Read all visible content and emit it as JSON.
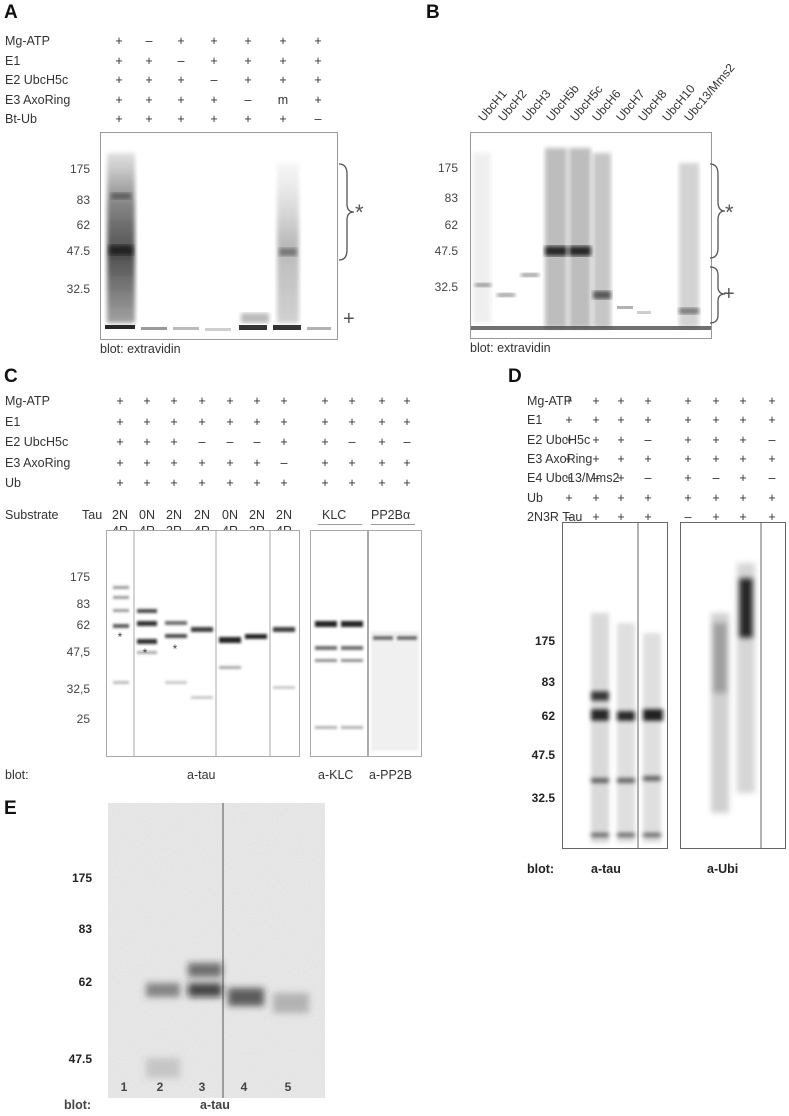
{
  "panels": {
    "A": {
      "letter": "A",
      "rows": [
        {
          "label": "Mg-ATP",
          "values": [
            "+",
            "–",
            "+",
            "+",
            "+",
            "+",
            "+"
          ]
        },
        {
          "label": "E1",
          "values": [
            "+",
            "+",
            "–",
            "+",
            "+",
            "+",
            "+"
          ]
        },
        {
          "label": "E2 UbcH5c",
          "values": [
            "+",
            "+",
            "+",
            "–",
            "+",
            "+",
            "+"
          ]
        },
        {
          "label": "E3 AxoRing",
          "values": [
            "+",
            "+",
            "+",
            "+",
            "–",
            "m",
            "+"
          ]
        },
        {
          "label": "Bt-Ub",
          "values": [
            "+",
            "+",
            "+",
            "+",
            "+",
            "+",
            "–"
          ]
        }
      ],
      "mw": [
        "175",
        "83",
        "62",
        "47.5",
        "32.5"
      ],
      "blot": "blot: extravidin",
      "star": "*",
      "plus": "+"
    },
    "B": {
      "letter": "B",
      "lanes": [
        "UbcH1",
        "UbcH2",
        "UbcH3",
        "UbcH5b",
        "UbcH5c",
        "UbcH6",
        "UbcH7",
        "UbcH8",
        "UbcH10",
        "Ubc13/Mms2"
      ],
      "mw": [
        "175",
        "83",
        "62",
        "47.5",
        "32.5"
      ],
      "blot": "blot: extravidin",
      "star": "*",
      "plus": "+"
    },
    "C": {
      "letter": "C",
      "rows": [
        {
          "label": "Mg-ATP",
          "values": [
            "+",
            "+",
            "+",
            "+",
            "+",
            "+",
            "+",
            "+",
            "+",
            "+",
            "+"
          ]
        },
        {
          "label": "E1",
          "values": [
            "+",
            "+",
            "+",
            "+",
            "+",
            "+",
            "+",
            "+",
            "+",
            "+",
            "+"
          ]
        },
        {
          "label": "E2 UbcH5c",
          "values": [
            "+",
            "+",
            "+",
            "–",
            "–",
            "–",
            "+",
            "+",
            "–",
            "+",
            "–"
          ]
        },
        {
          "label": "E3 AxoRing",
          "values": [
            "+",
            "+",
            "+",
            "+",
            "+",
            "+",
            "–",
            "+",
            "+",
            "+",
            "+"
          ]
        },
        {
          "label": "Ub",
          "values": [
            "+",
            "+",
            "+",
            "+",
            "+",
            "+",
            "+",
            "+",
            "+",
            "+",
            "+"
          ]
        }
      ],
      "substrate_label": "Substrate",
      "tau_label": "Tau",
      "substrates_top": [
        "2N",
        "0N",
        "2N",
        "2N",
        "0N",
        "2N",
        "2N"
      ],
      "substrates_bottom": [
        "4R",
        "4R",
        "3R",
        "4R",
        "4R",
        "3R",
        "4R"
      ],
      "klc_label": "KLC",
      "pp2b_label": "PP2Bα",
      "mw": [
        "175",
        "83",
        "62",
        "47,5",
        "32,5",
        "25"
      ],
      "blot": "blot:",
      "blot_tau": "a-tau",
      "blot_klc": "a-KLC",
      "blot_pp2b": "a-PP2B",
      "star": "*"
    },
    "D": {
      "letter": "D",
      "rows": [
        {
          "label": "Mg-ATP",
          "values": [
            "+",
            "+",
            "+",
            "+",
            "+",
            "+",
            "+",
            "+"
          ]
        },
        {
          "label": "E1",
          "values": [
            "+",
            "+",
            "+",
            "+",
            "+",
            "+",
            "+",
            "+"
          ]
        },
        {
          "label": "E2 UbcH5c",
          "values": [
            "+",
            "+",
            "+",
            "–",
            "+",
            "+",
            "+",
            "–"
          ]
        },
        {
          "label": "E3 AxoRing",
          "values": [
            "+",
            "+",
            "+",
            "+",
            "+",
            "+",
            "+",
            "+"
          ]
        },
        {
          "label": "E4 Ubc13/Mms2",
          "values": [
            "+",
            "–",
            "+",
            "–",
            "+",
            "–",
            "+",
            "–"
          ]
        },
        {
          "label": "Ub",
          "values": [
            "+",
            "+",
            "+",
            "+",
            "+",
            "+",
            "+",
            "+"
          ]
        },
        {
          "label": "2N3R Tau",
          "values": [
            "–",
            "+",
            "+",
            "+",
            "–",
            "+",
            "+",
            "+"
          ]
        }
      ],
      "mw": [
        "175",
        "83",
        "62",
        "47.5",
        "32.5"
      ],
      "blot": "blot:",
      "blot_tau": "a-tau",
      "blot_ubi": "a-Ubi"
    },
    "E": {
      "letter": "E",
      "mw": [
        "175",
        "83",
        "62",
        "47.5"
      ],
      "lanes": [
        "1",
        "2",
        "3",
        "4",
        "5"
      ],
      "blot": "blot:",
      "blot_tau": "a-tau"
    }
  }
}
